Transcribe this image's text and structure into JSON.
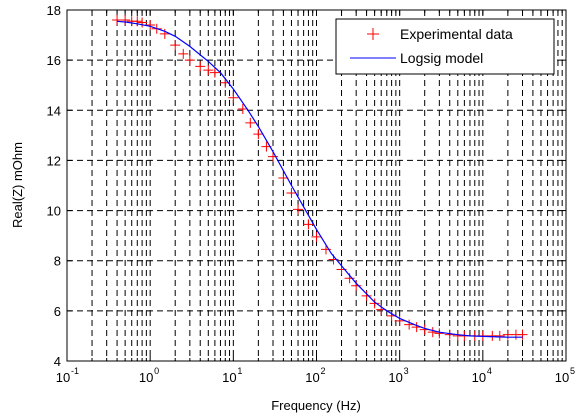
{
  "chart_data": {
    "type": "scatter",
    "title": "",
    "xlabel": "Frequency (Hz)",
    "ylabel": "Real(Z) mOhm",
    "xscale": "log",
    "xlim": [
      0.1,
      100000
    ],
    "ylim": [
      4,
      18
    ],
    "x_ticks": [
      {
        "base": "10",
        "exp": "-1",
        "value": 0.1
      },
      {
        "base": "10",
        "exp": "0",
        "value": 1
      },
      {
        "base": "10",
        "exp": "1",
        "value": 10
      },
      {
        "base": "10",
        "exp": "2",
        "value": 100
      },
      {
        "base": "10",
        "exp": "3",
        "value": 1000
      },
      {
        "base": "10",
        "exp": "4",
        "value": 10000
      },
      {
        "base": "10",
        "exp": "5",
        "value": 100000
      }
    ],
    "y_ticks": [
      "4",
      "6",
      "8",
      "10",
      "12",
      "14",
      "16",
      "18"
    ],
    "grid": true,
    "grid_style": "dashed",
    "legend_position": "top-right",
    "series": [
      {
        "name": "Experimental data",
        "marker": "+",
        "color": "#ff0000",
        "x": [
          0.4,
          0.5,
          0.6,
          0.7,
          0.8,
          1.0,
          1.2,
          1.5,
          2,
          2.5,
          3,
          4,
          5,
          6,
          8,
          10,
          13,
          16,
          20,
          25,
          30,
          40,
          50,
          60,
          80,
          100,
          130,
          160,
          200,
          250,
          300,
          400,
          500,
          600,
          800,
          1000,
          1300,
          1600,
          2000,
          2500,
          3000,
          4000,
          5000,
          6000,
          8000,
          10000,
          13000,
          16000,
          20000,
          25000,
          30000
        ],
        "y": [
          17.6,
          17.6,
          17.55,
          17.55,
          17.5,
          17.4,
          17.25,
          17.05,
          16.6,
          16.25,
          16.0,
          15.75,
          15.6,
          15.5,
          15.1,
          14.5,
          14.05,
          13.5,
          13.05,
          12.55,
          12.15,
          11.3,
          10.7,
          10.05,
          9.45,
          8.95,
          8.45,
          8.05,
          7.65,
          7.3,
          7.0,
          6.6,
          6.3,
          6.05,
          5.8,
          5.6,
          5.45,
          5.35,
          5.25,
          5.15,
          5.1,
          5.05,
          5.0,
          5.0,
          5.0,
          5.0,
          5.0,
          5.0,
          5.05,
          5.05,
          5.05
        ]
      },
      {
        "name": "Logsig model",
        "marker": "line",
        "color": "#0000ff",
        "x": [
          0.4,
          0.5,
          0.7,
          1,
          1.5,
          2,
          3,
          5,
          7,
          10,
          15,
          20,
          30,
          50,
          70,
          100,
          150,
          200,
          300,
          500,
          700,
          1000,
          1500,
          2000,
          3000,
          5000,
          7000,
          10000,
          15000,
          20000,
          30000
        ],
        "y": [
          17.55,
          17.52,
          17.45,
          17.35,
          17.15,
          16.95,
          16.55,
          15.95,
          15.5,
          14.85,
          14.0,
          13.35,
          12.35,
          11.0,
          10.15,
          9.25,
          8.3,
          7.8,
          7.1,
          6.35,
          6.0,
          5.7,
          5.45,
          5.3,
          5.15,
          5.05,
          5.0,
          4.98,
          4.96,
          4.95,
          4.95
        ]
      }
    ]
  }
}
